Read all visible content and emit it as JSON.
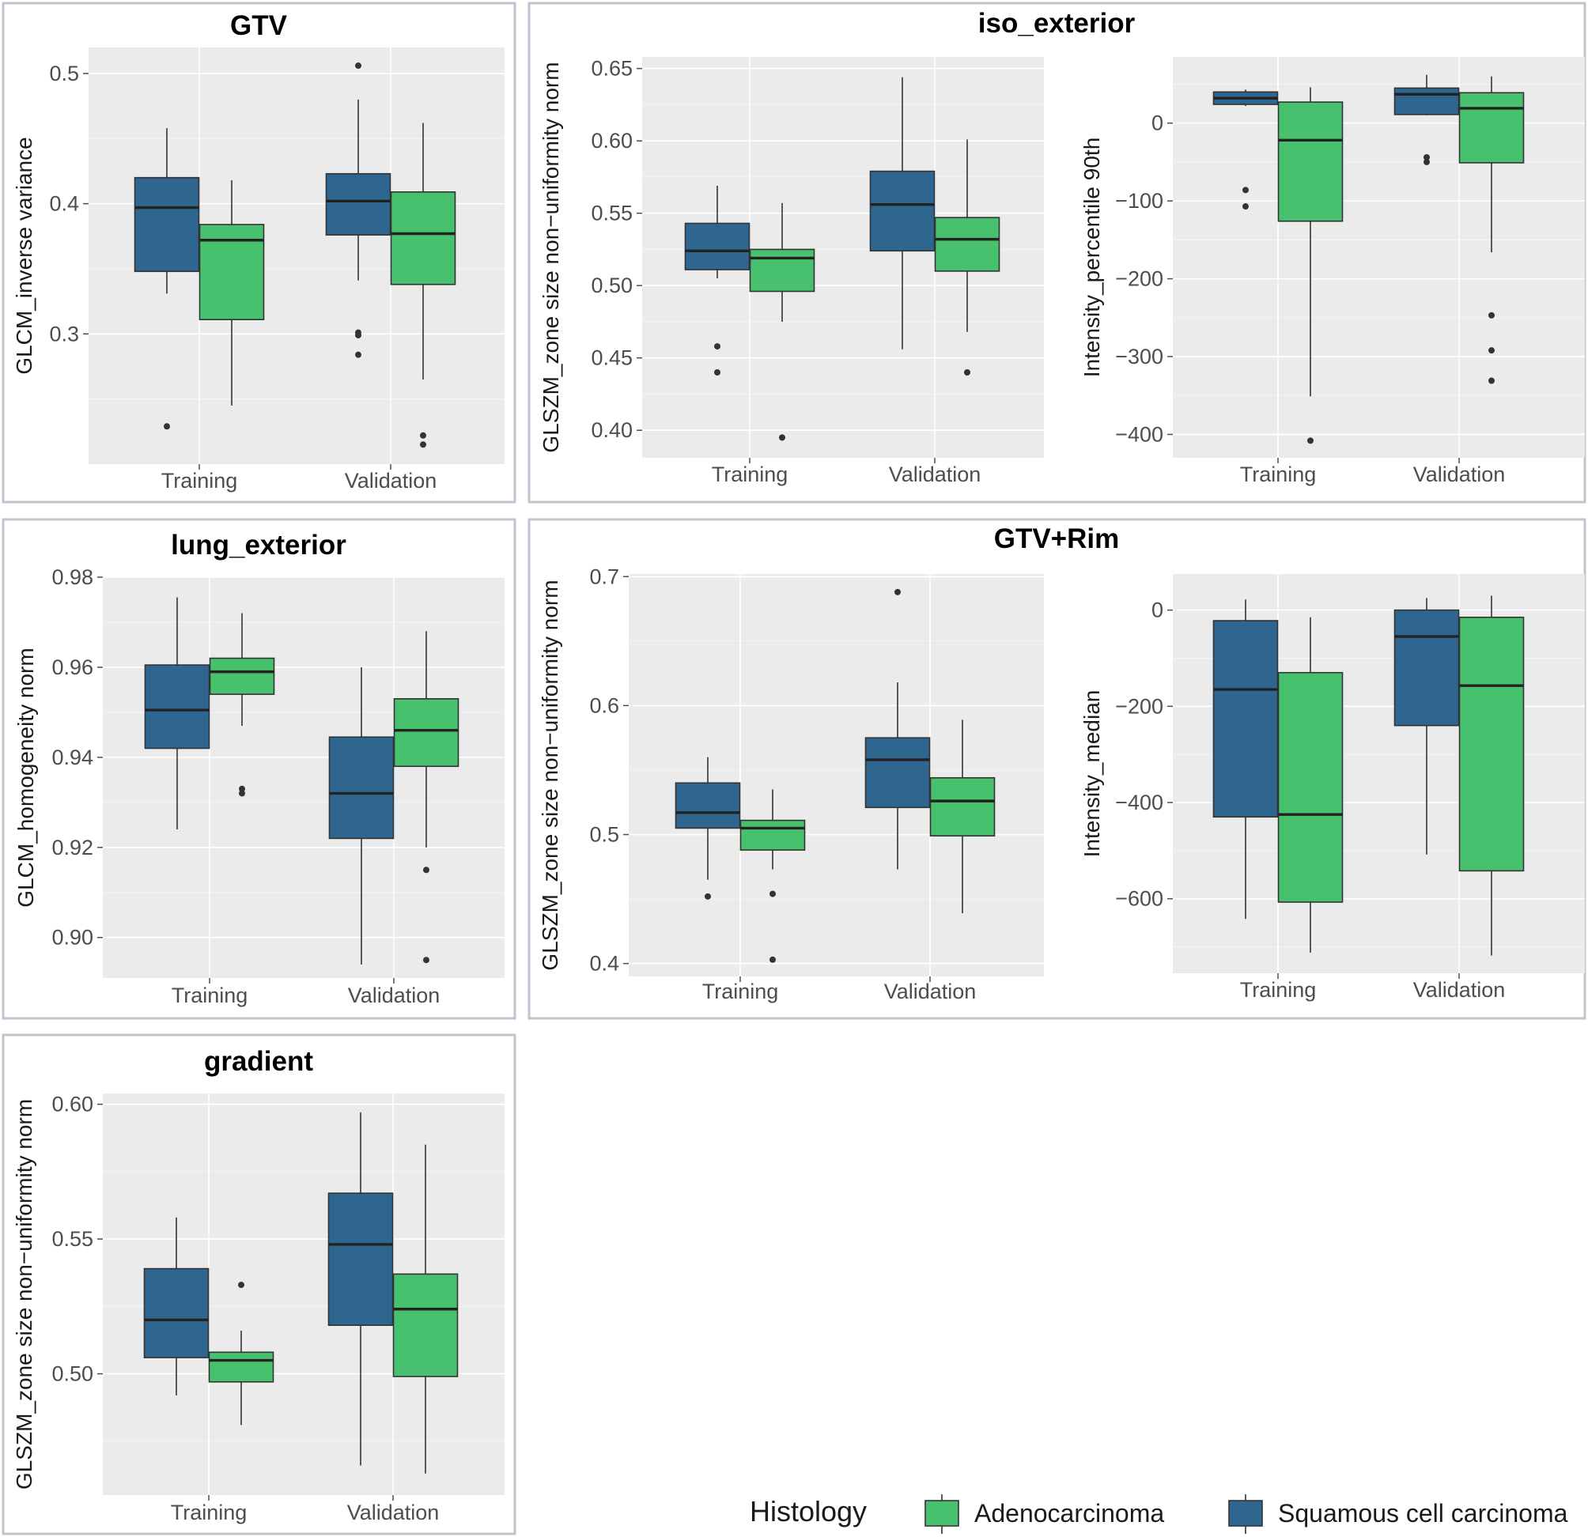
{
  "colors": {
    "Squamous cell carcinoma": "#2f6690",
    "Adenocarcinoma": "#47c16e"
  },
  "legend": {
    "title": "Histology",
    "items": [
      "Adenocarcinoma",
      "Squamous cell carcinoma"
    ]
  },
  "panel_titles": {
    "gtv": "GTV",
    "iso": "iso_exterior",
    "lung": "lung_exterior",
    "rim": "GTV+Rim",
    "grad": "gradient"
  },
  "chart_data": [
    {
      "type": "box",
      "panel": "GTV",
      "title": "GTV",
      "xlabel": "",
      "ylabel": "GLCM_inverse variance",
      "categories": [
        "Training",
        "Validation"
      ],
      "ylim": [
        0.2,
        0.52
      ],
      "yticks": [
        0.3,
        0.4,
        0.5
      ],
      "tick_labels": [
        "0.3",
        "0.4",
        "0.5"
      ],
      "series": [
        {
          "name": "Squamous cell carcinoma",
          "boxes": [
            {
              "min": 0.331,
              "q1": 0.348,
              "median": 0.397,
              "q3": 0.42,
              "max": 0.458,
              "outliers": [
                0.229
              ]
            },
            {
              "min": 0.341,
              "q1": 0.376,
              "median": 0.402,
              "q3": 0.423,
              "max": 0.48,
              "outliers": [
                0.506,
                0.301,
                0.299,
                0.284
              ]
            }
          ]
        },
        {
          "name": "Adenocarcinoma",
          "boxes": [
            {
              "min": 0.245,
              "q1": 0.311,
              "median": 0.372,
              "q3": 0.384,
              "max": 0.418,
              "outliers": []
            },
            {
              "min": 0.265,
              "q1": 0.338,
              "median": 0.377,
              "q3": 0.409,
              "max": 0.462,
              "outliers": [
                0.222,
                0.215
              ]
            }
          ]
        }
      ]
    },
    {
      "type": "box",
      "panel": "iso_exterior",
      "title": "iso_exterior",
      "xlabel": "",
      "ylabel": "GLSZM_zone size non−uniformity norm",
      "categories": [
        "Training",
        "Validation"
      ],
      "ylim": [
        0.381,
        0.658
      ],
      "yticks": [
        0.4,
        0.45,
        0.5,
        0.55,
        0.6,
        0.65
      ],
      "tick_labels": [
        "0.40",
        "0.45",
        "0.50",
        "0.55",
        "0.60",
        "0.65"
      ],
      "series": [
        {
          "name": "Squamous cell carcinoma",
          "boxes": [
            {
              "min": 0.505,
              "q1": 0.511,
              "median": 0.524,
              "q3": 0.543,
              "max": 0.569,
              "outliers": [
                0.458,
                0.44
              ]
            },
            {
              "min": 0.456,
              "q1": 0.524,
              "median": 0.556,
              "q3": 0.579,
              "max": 0.644,
              "outliers": []
            }
          ]
        },
        {
          "name": "Adenocarcinoma",
          "boxes": [
            {
              "min": 0.475,
              "q1": 0.496,
              "median": 0.519,
              "q3": 0.525,
              "max": 0.557,
              "outliers": [
                0.395
              ]
            },
            {
              "min": 0.468,
              "q1": 0.51,
              "median": 0.532,
              "q3": 0.547,
              "max": 0.601,
              "outliers": [
                0.44
              ]
            }
          ]
        }
      ]
    },
    {
      "type": "box",
      "panel": "iso_exterior",
      "title": "",
      "xlabel": "",
      "ylabel": "Intensity_percentile 90th",
      "categories": [
        "Training",
        "Validation"
      ],
      "ylim": [
        -430,
        85
      ],
      "yticks": [
        -400,
        -300,
        -200,
        -100,
        0
      ],
      "tick_labels": [
        "−400",
        "−300",
        "−200",
        "−100",
        "0"
      ],
      "series": [
        {
          "name": "Squamous cell carcinoma",
          "boxes": [
            {
              "min": 22,
              "q1": 24,
              "median": 32,
              "q3": 40,
              "max": 43,
              "outliers": [
                -86,
                -107
              ]
            },
            {
              "min": 10,
              "q1": 11,
              "median": 37,
              "q3": 45,
              "max": 62,
              "outliers": [
                -44,
                -50
              ]
            }
          ]
        },
        {
          "name": "Adenocarcinoma",
          "boxes": [
            {
              "min": -351,
              "q1": -126,
              "median": -22,
              "q3": 27,
              "max": 46,
              "outliers": [
                -408
              ]
            },
            {
              "min": -166,
              "q1": -51,
              "median": 19,
              "q3": 39,
              "max": 60,
              "outliers": [
                -247,
                -292,
                -331
              ]
            }
          ]
        }
      ]
    },
    {
      "type": "box",
      "panel": "lung_exterior",
      "title": "lung_exterior",
      "xlabel": "",
      "ylabel": "GLCM_homogeneity norm",
      "categories": [
        "Training",
        "Validation"
      ],
      "ylim": [
        0.891,
        0.98
      ],
      "yticks": [
        0.9,
        0.92,
        0.94,
        0.96,
        0.98
      ],
      "tick_labels": [
        "0.90",
        "0.92",
        "0.94",
        "0.96",
        "0.98"
      ],
      "series": [
        {
          "name": "Squamous cell carcinoma",
          "boxes": [
            {
              "min": 0.924,
              "q1": 0.942,
              "median": 0.9505,
              "q3": 0.9605,
              "max": 0.9755,
              "outliers": []
            },
            {
              "min": 0.894,
              "q1": 0.922,
              "median": 0.932,
              "q3": 0.9445,
              "max": 0.96,
              "outliers": []
            }
          ]
        },
        {
          "name": "Adenocarcinoma",
          "boxes": [
            {
              "min": 0.947,
              "q1": 0.954,
              "median": 0.959,
              "q3": 0.962,
              "max": 0.972,
              "outliers": [
                0.933,
                0.932
              ]
            },
            {
              "min": 0.92,
              "q1": 0.938,
              "median": 0.946,
              "q3": 0.953,
              "max": 0.968,
              "outliers": [
                0.915,
                0.895
              ]
            }
          ]
        }
      ]
    },
    {
      "type": "box",
      "panel": "GTV+Rim",
      "title": "GTV+Rim",
      "xlabel": "",
      "ylabel": "GLSZM_zone size non−uniformity norm",
      "categories": [
        "Training",
        "Validation"
      ],
      "ylim": [
        0.39,
        0.702
      ],
      "yticks": [
        0.4,
        0.5,
        0.6,
        0.7
      ],
      "tick_labels": [
        "0.4",
        "0.5",
        "0.6",
        "0.7"
      ],
      "series": [
        {
          "name": "Squamous cell carcinoma",
          "boxes": [
            {
              "min": 0.465,
              "q1": 0.505,
              "median": 0.517,
              "q3": 0.54,
              "max": 0.56,
              "outliers": [
                0.452
              ]
            },
            {
              "min": 0.473,
              "q1": 0.521,
              "median": 0.558,
              "q3": 0.575,
              "max": 0.618,
              "outliers": [
                0.688
              ]
            }
          ]
        },
        {
          "name": "Adenocarcinoma",
          "boxes": [
            {
              "min": 0.473,
              "q1": 0.488,
              "median": 0.505,
              "q3": 0.511,
              "max": 0.535,
              "outliers": [
                0.454,
                0.403
              ]
            },
            {
              "min": 0.439,
              "q1": 0.499,
              "median": 0.526,
              "q3": 0.544,
              "max": 0.589,
              "outliers": []
            }
          ]
        }
      ]
    },
    {
      "type": "box",
      "panel": "GTV+Rim",
      "title": "",
      "xlabel": "",
      "ylabel": "Intensity_median",
      "categories": [
        "Training",
        "Validation"
      ],
      "ylim": [
        -755,
        75
      ],
      "yticks": [
        -600,
        -400,
        -200,
        0
      ],
      "tick_labels": [
        "−600",
        "−400",
        "−200",
        "0"
      ],
      "series": [
        {
          "name": "Squamous cell carcinoma",
          "boxes": [
            {
              "min": -642,
              "q1": -430,
              "median": -165,
              "q3": -22,
              "max": 22,
              "outliers": []
            },
            {
              "min": -508,
              "q1": -240,
              "median": -55,
              "q3": 0,
              "max": 25,
              "outliers": []
            }
          ]
        },
        {
          "name": "Adenocarcinoma",
          "boxes": [
            {
              "min": -712,
              "q1": -607,
              "median": -425,
              "q3": -130,
              "max": -15,
              "outliers": []
            },
            {
              "min": -718,
              "q1": -542,
              "median": -157,
              "q3": -15,
              "max": 30,
              "outliers": []
            }
          ]
        }
      ]
    },
    {
      "type": "box",
      "panel": "gradient",
      "title": "gradient",
      "xlabel": "",
      "ylabel": "GLSZM_zone size non−uniformity norm",
      "categories": [
        "Training",
        "Validation"
      ],
      "ylim": [
        0.455,
        0.604
      ],
      "yticks": [
        0.5,
        0.55,
        0.6
      ],
      "tick_labels": [
        "0.50",
        "0.55",
        "0.60"
      ],
      "series": [
        {
          "name": "Squamous cell carcinoma",
          "boxes": [
            {
              "min": 0.492,
              "q1": 0.506,
              "median": 0.52,
              "q3": 0.539,
              "max": 0.558,
              "outliers": []
            },
            {
              "min": 0.466,
              "q1": 0.518,
              "median": 0.548,
              "q3": 0.567,
              "max": 0.597,
              "outliers": []
            }
          ]
        },
        {
          "name": "Adenocarcinoma",
          "boxes": [
            {
              "min": 0.481,
              "q1": 0.497,
              "median": 0.505,
              "q3": 0.508,
              "max": 0.516,
              "outliers": [
                0.533
              ]
            },
            {
              "min": 0.463,
              "q1": 0.499,
              "median": 0.524,
              "q3": 0.537,
              "max": 0.585,
              "outliers": []
            }
          ]
        }
      ]
    }
  ]
}
